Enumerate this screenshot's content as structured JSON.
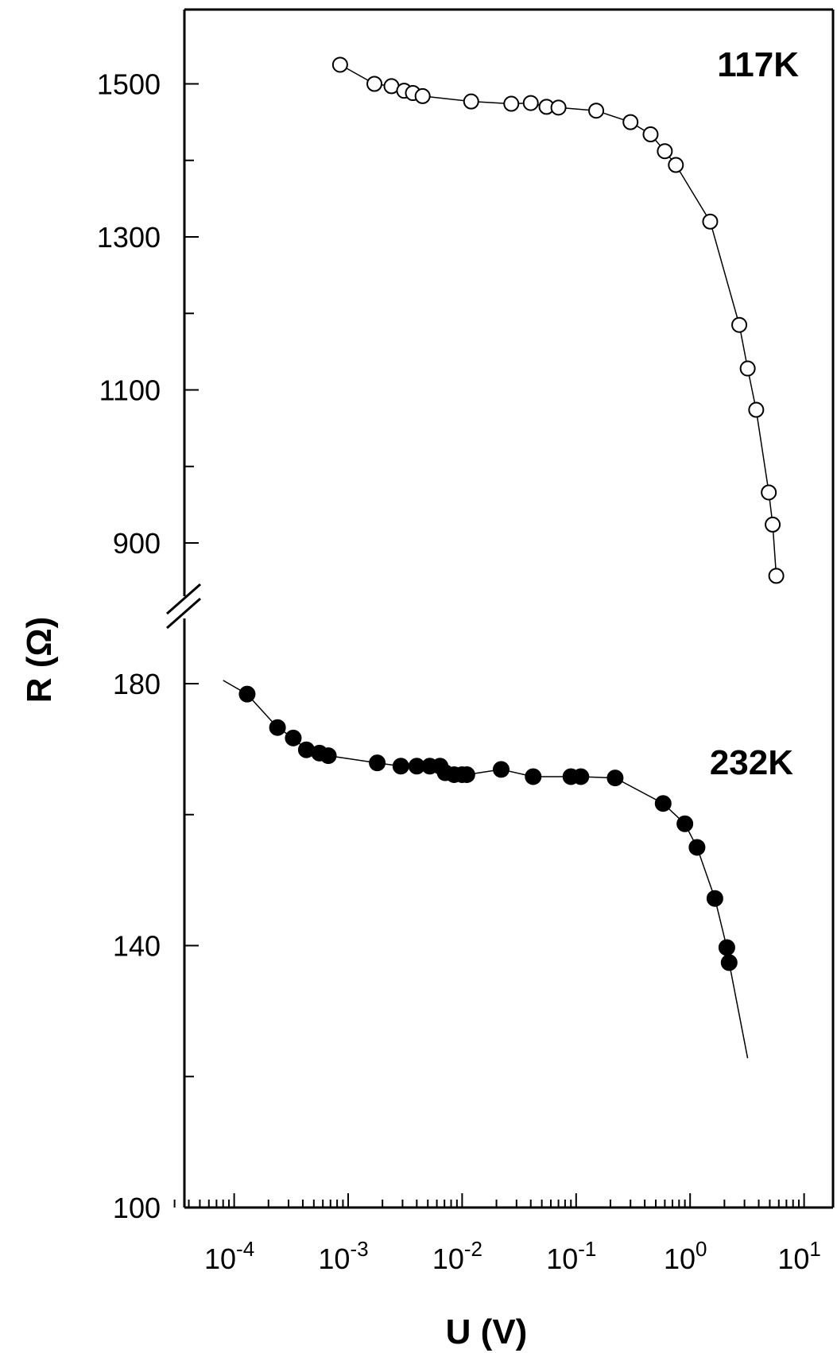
{
  "chart_data": {
    "type": "scatter",
    "title": "",
    "xlabel": "U (V)",
    "ylabel": "R (Ω)",
    "x_scale": "log",
    "xlim": [
      3e-05,
      12
    ],
    "x_ticks": [
      {
        "base": "10",
        "exp": "-4"
      },
      {
        "base": "10",
        "exp": "-3"
      },
      {
        "base": "10",
        "exp": "-2"
      },
      {
        "base": "10",
        "exp": "-1"
      },
      {
        "base": "10",
        "exp": "0"
      },
      {
        "base": "10",
        "exp": "1"
      }
    ],
    "y_axis_broken": true,
    "upper_segment": {
      "ylim": [
        846,
        1595
      ],
      "ticks": [
        "1500",
        "1300",
        "1100",
        "900"
      ]
    },
    "lower_segment": {
      "ylim": [
        100,
        182
      ],
      "ticks": [
        "180",
        "140",
        "100"
      ]
    },
    "grid": false,
    "series": [
      {
        "name": "117K",
        "marker": "open-circle",
        "segment": "upper",
        "points": [
          [
            0.00085,
            1525
          ],
          [
            0.0017,
            1500
          ],
          [
            0.0024,
            1497
          ],
          [
            0.0031,
            1491
          ],
          [
            0.0037,
            1488
          ],
          [
            0.0045,
            1484
          ],
          [
            0.012,
            1477
          ],
          [
            0.027,
            1474
          ],
          [
            0.04,
            1475
          ],
          [
            0.055,
            1470
          ],
          [
            0.07,
            1469
          ],
          [
            0.15,
            1465
          ],
          [
            0.3,
            1450
          ],
          [
            0.45,
            1434
          ],
          [
            0.6,
            1412
          ],
          [
            0.75,
            1394
          ],
          [
            1.5,
            1320
          ],
          [
            2.7,
            1185
          ],
          [
            3.2,
            1128
          ],
          [
            3.8,
            1074
          ],
          [
            4.9,
            966
          ],
          [
            5.3,
            924
          ],
          [
            5.7,
            857
          ]
        ]
      },
      {
        "name": "232K",
        "marker": "filled-circle",
        "segment": "lower",
        "points": [
          [
            0.00013,
            178.4
          ],
          [
            0.00024,
            173.3
          ],
          [
            0.00033,
            171.7
          ],
          [
            0.00043,
            169.9
          ],
          [
            0.00056,
            169.4
          ],
          [
            0.00067,
            169.0
          ],
          [
            0.0018,
            167.9
          ],
          [
            0.0029,
            167.4
          ],
          [
            0.004,
            167.4
          ],
          [
            0.0052,
            167.4
          ],
          [
            0.0064,
            167.4
          ],
          [
            0.0071,
            166.4
          ],
          [
            0.0085,
            166.1
          ],
          [
            0.01,
            166.1
          ],
          [
            0.011,
            166.1
          ],
          [
            0.022,
            166.9
          ],
          [
            0.042,
            165.8
          ],
          [
            0.09,
            165.8
          ],
          [
            0.11,
            165.8
          ],
          [
            0.22,
            165.6
          ],
          [
            0.58,
            161.7
          ],
          [
            0.9,
            158.6
          ],
          [
            1.15,
            155.0
          ],
          [
            1.65,
            147.2
          ],
          [
            2.1,
            139.7
          ],
          [
            2.2,
            137.4
          ]
        ],
        "fit_curve_ends": [
          [
            8e-05,
            180.5
          ],
          [
            3.2,
            122.8
          ]
        ]
      }
    ]
  }
}
